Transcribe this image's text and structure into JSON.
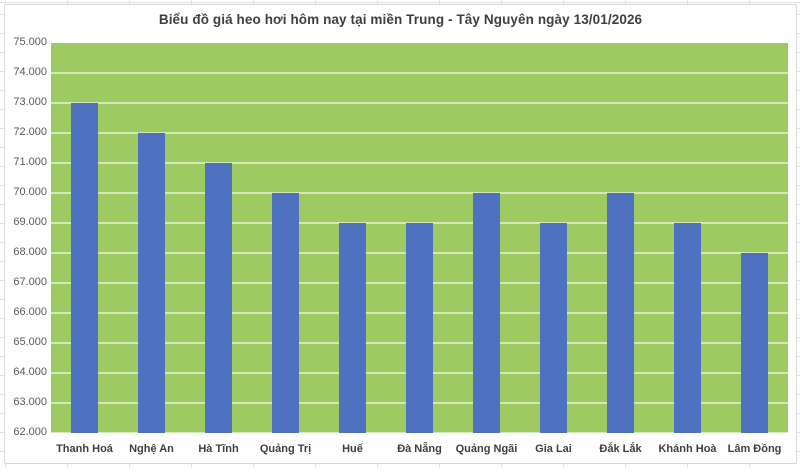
{
  "chart_data": {
    "type": "bar",
    "title": "Biểu đồ giá heo hơi hôm nay tại miền Trung - Tây Nguyên ngày 13/01/2026",
    "categories": [
      "Thanh Hoá",
      "Nghệ An",
      "Hà Tĩnh",
      "Quảng Trị",
      "Huế",
      "Đà Nẵng",
      "Quảng Ngãi",
      "Gia Lai",
      "Đắk Lắk",
      "Khánh Hoà",
      "Lâm Đồng"
    ],
    "values": [
      73000,
      72000,
      71000,
      70000,
      69000,
      69000,
      70000,
      69000,
      70000,
      69000,
      68000
    ],
    "y_tick_labels": [
      "75.000",
      "74.000",
      "73.000",
      "72.000",
      "71.000",
      "70.000",
      "69.000",
      "68.000",
      "67.000",
      "66.000",
      "65.000",
      "64.000",
      "63.000",
      "62.000"
    ],
    "ylim": [
      62000,
      75000
    ],
    "y_step": 1000,
    "xlabel": "",
    "ylabel": "",
    "grid": true,
    "legend": "none",
    "colors": {
      "bar": "#4e72c0",
      "plot_bg": "#9dcb62",
      "gridline": "rgba(255,255,255,0.55)",
      "title_text": "#3f3f3f",
      "axis_tick_text": "#595959",
      "category_text": "#3f3f3f",
      "chart_border": "#d8d8d8",
      "sheet_grid": "#e3e3e3"
    }
  }
}
